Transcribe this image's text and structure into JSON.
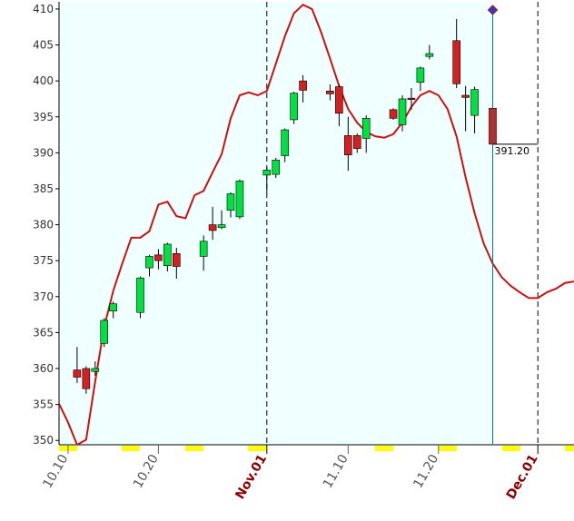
{
  "chart_data": {
    "type": "candlestick",
    "x": [
      "10.11",
      "10.12",
      "10.13",
      "10.14",
      "10.15",
      "10.18",
      "10.19",
      "10.20",
      "10.21",
      "10.22",
      "10.25",
      "10.26",
      "10.27",
      "10.28",
      "10.29",
      "11.01",
      "11.02",
      "11.03",
      "11.04",
      "11.05",
      "11.08",
      "11.09",
      "11.10",
      "11.11",
      "11.12",
      "11.15",
      "11.16",
      "11.17",
      "11.18",
      "11.19",
      "11.22",
      "11.23",
      "11.24",
      "11.26"
    ],
    "open": [
      359.8,
      360.0,
      359.6,
      363.5,
      368.0,
      367.8,
      374.0,
      375.8,
      374.3,
      376.0,
      375.6,
      380.0,
      379.6,
      382.0,
      381.1,
      386.9,
      387.0,
      389.6,
      394.6,
      400.0,
      398.6,
      399.2,
      392.4,
      392.4,
      392.0,
      396.0,
      393.9,
      397.6,
      399.8,
      403.4,
      405.6,
      398.0,
      395.2,
      396.2
    ],
    "high": [
      363.0,
      360.3,
      361.0,
      367.0,
      369.3,
      372.8,
      375.8,
      376.6,
      377.5,
      376.8,
      378.5,
      382.5,
      382.0,
      384.5,
      386.3,
      388.0,
      389.3,
      393.4,
      398.5,
      400.8,
      399.5,
      399.5,
      395.0,
      392.7,
      395.2,
      396.2,
      398.0,
      399.0,
      402.0,
      405.0,
      408.6,
      399.3,
      399.2,
      396.4
    ],
    "low": [
      358.0,
      356.5,
      359.0,
      363.0,
      367.0,
      367.0,
      372.8,
      373.8,
      373.5,
      372.5,
      373.6,
      377.9,
      379.4,
      381.0,
      380.8,
      384.5,
      386.5,
      388.7,
      394.0,
      397.0,
      397.3,
      393.7,
      387.5,
      390.0,
      390.0,
      394.6,
      393.0,
      396.0,
      398.6,
      403.0,
      399.0,
      393.0,
      392.7,
      391.2
    ],
    "close": [
      358.8,
      357.2,
      360.0,
      366.7,
      369.0,
      372.6,
      375.6,
      375.0,
      377.3,
      374.2,
      377.7,
      379.2,
      380.0,
      384.3,
      386.1,
      387.6,
      389.0,
      393.2,
      398.3,
      398.7,
      398.2,
      395.5,
      389.7,
      390.6,
      394.8,
      394.8,
      397.5,
      397.5,
      401.8,
      403.8,
      399.6,
      397.7,
      398.8,
      391.2
    ],
    "up_color": "#00e040",
    "down_color": "#d42020",
    "overlay": {
      "type": "line",
      "color": "#cc1111",
      "x": [
        "10.09",
        "10.10",
        "10.11",
        "10.12",
        "10.13",
        "10.14",
        "10.15",
        "10.16",
        "10.17",
        "10.18",
        "10.19",
        "10.20",
        "10.21",
        "10.22",
        "10.23",
        "10.24",
        "10.25",
        "10.26",
        "10.27",
        "10.28",
        "10.29",
        "10.30",
        "10.31",
        "11.01",
        "11.02",
        "11.03",
        "11.04",
        "11.05",
        "11.06",
        "11.07",
        "11.08",
        "11.09",
        "11.10",
        "11.11",
        "11.12",
        "11.13",
        "11.14",
        "11.15",
        "11.16",
        "11.17",
        "11.18",
        "11.19",
        "11.20",
        "11.21",
        "11.22",
        "11.23",
        "11.24",
        "11.25",
        "11.26",
        "11.27",
        "11.28",
        "11.29",
        "11.30",
        "12.01",
        "12.02",
        "12.03",
        "12.04",
        "12.05"
      ],
      "values": [
        355.1,
        352.5,
        349.4,
        350.1,
        358.2,
        365.8,
        370.8,
        374.6,
        378.2,
        378.2,
        379.1,
        382.8,
        383.2,
        381.2,
        380.9,
        384.1,
        384.7,
        387.3,
        389.8,
        394.8,
        398.0,
        398.4,
        398.0,
        398.6,
        402.4,
        406.2,
        409.4,
        410.6,
        410.0,
        406.8,
        403.1,
        399.3,
        396.1,
        394.2,
        392.9,
        392.3,
        392.1,
        392.6,
        394.2,
        396.4,
        398.0,
        398.6,
        398.0,
        396.1,
        392.3,
        386.6,
        381.6,
        377.4,
        374.6,
        372.7,
        371.5,
        370.6,
        369.8,
        369.8,
        370.6,
        371.1,
        371.9,
        372.1
      ]
    },
    "cursor": {
      "x": "11.26",
      "value": 391.2,
      "label": "391.20",
      "color": "#008080"
    },
    "xlim": [
      "10.09",
      "12.05"
    ],
    "xticks": [
      {
        "value": "10.10",
        "label": "10.10"
      },
      {
        "value": "10.20",
        "label": "10.20"
      },
      {
        "value": "11.01",
        "label": "Nov.01"
      },
      {
        "value": "11.10",
        "label": "11.10"
      },
      {
        "value": "11.20",
        "label": "11.20"
      },
      {
        "value": "12.01",
        "label": "Dec.01"
      }
    ],
    "ylim": [
      349.4,
      411
    ],
    "yticks": [
      350,
      355,
      360,
      365,
      370,
      375,
      380,
      385,
      390,
      395,
      400,
      405,
      410
    ]
  }
}
